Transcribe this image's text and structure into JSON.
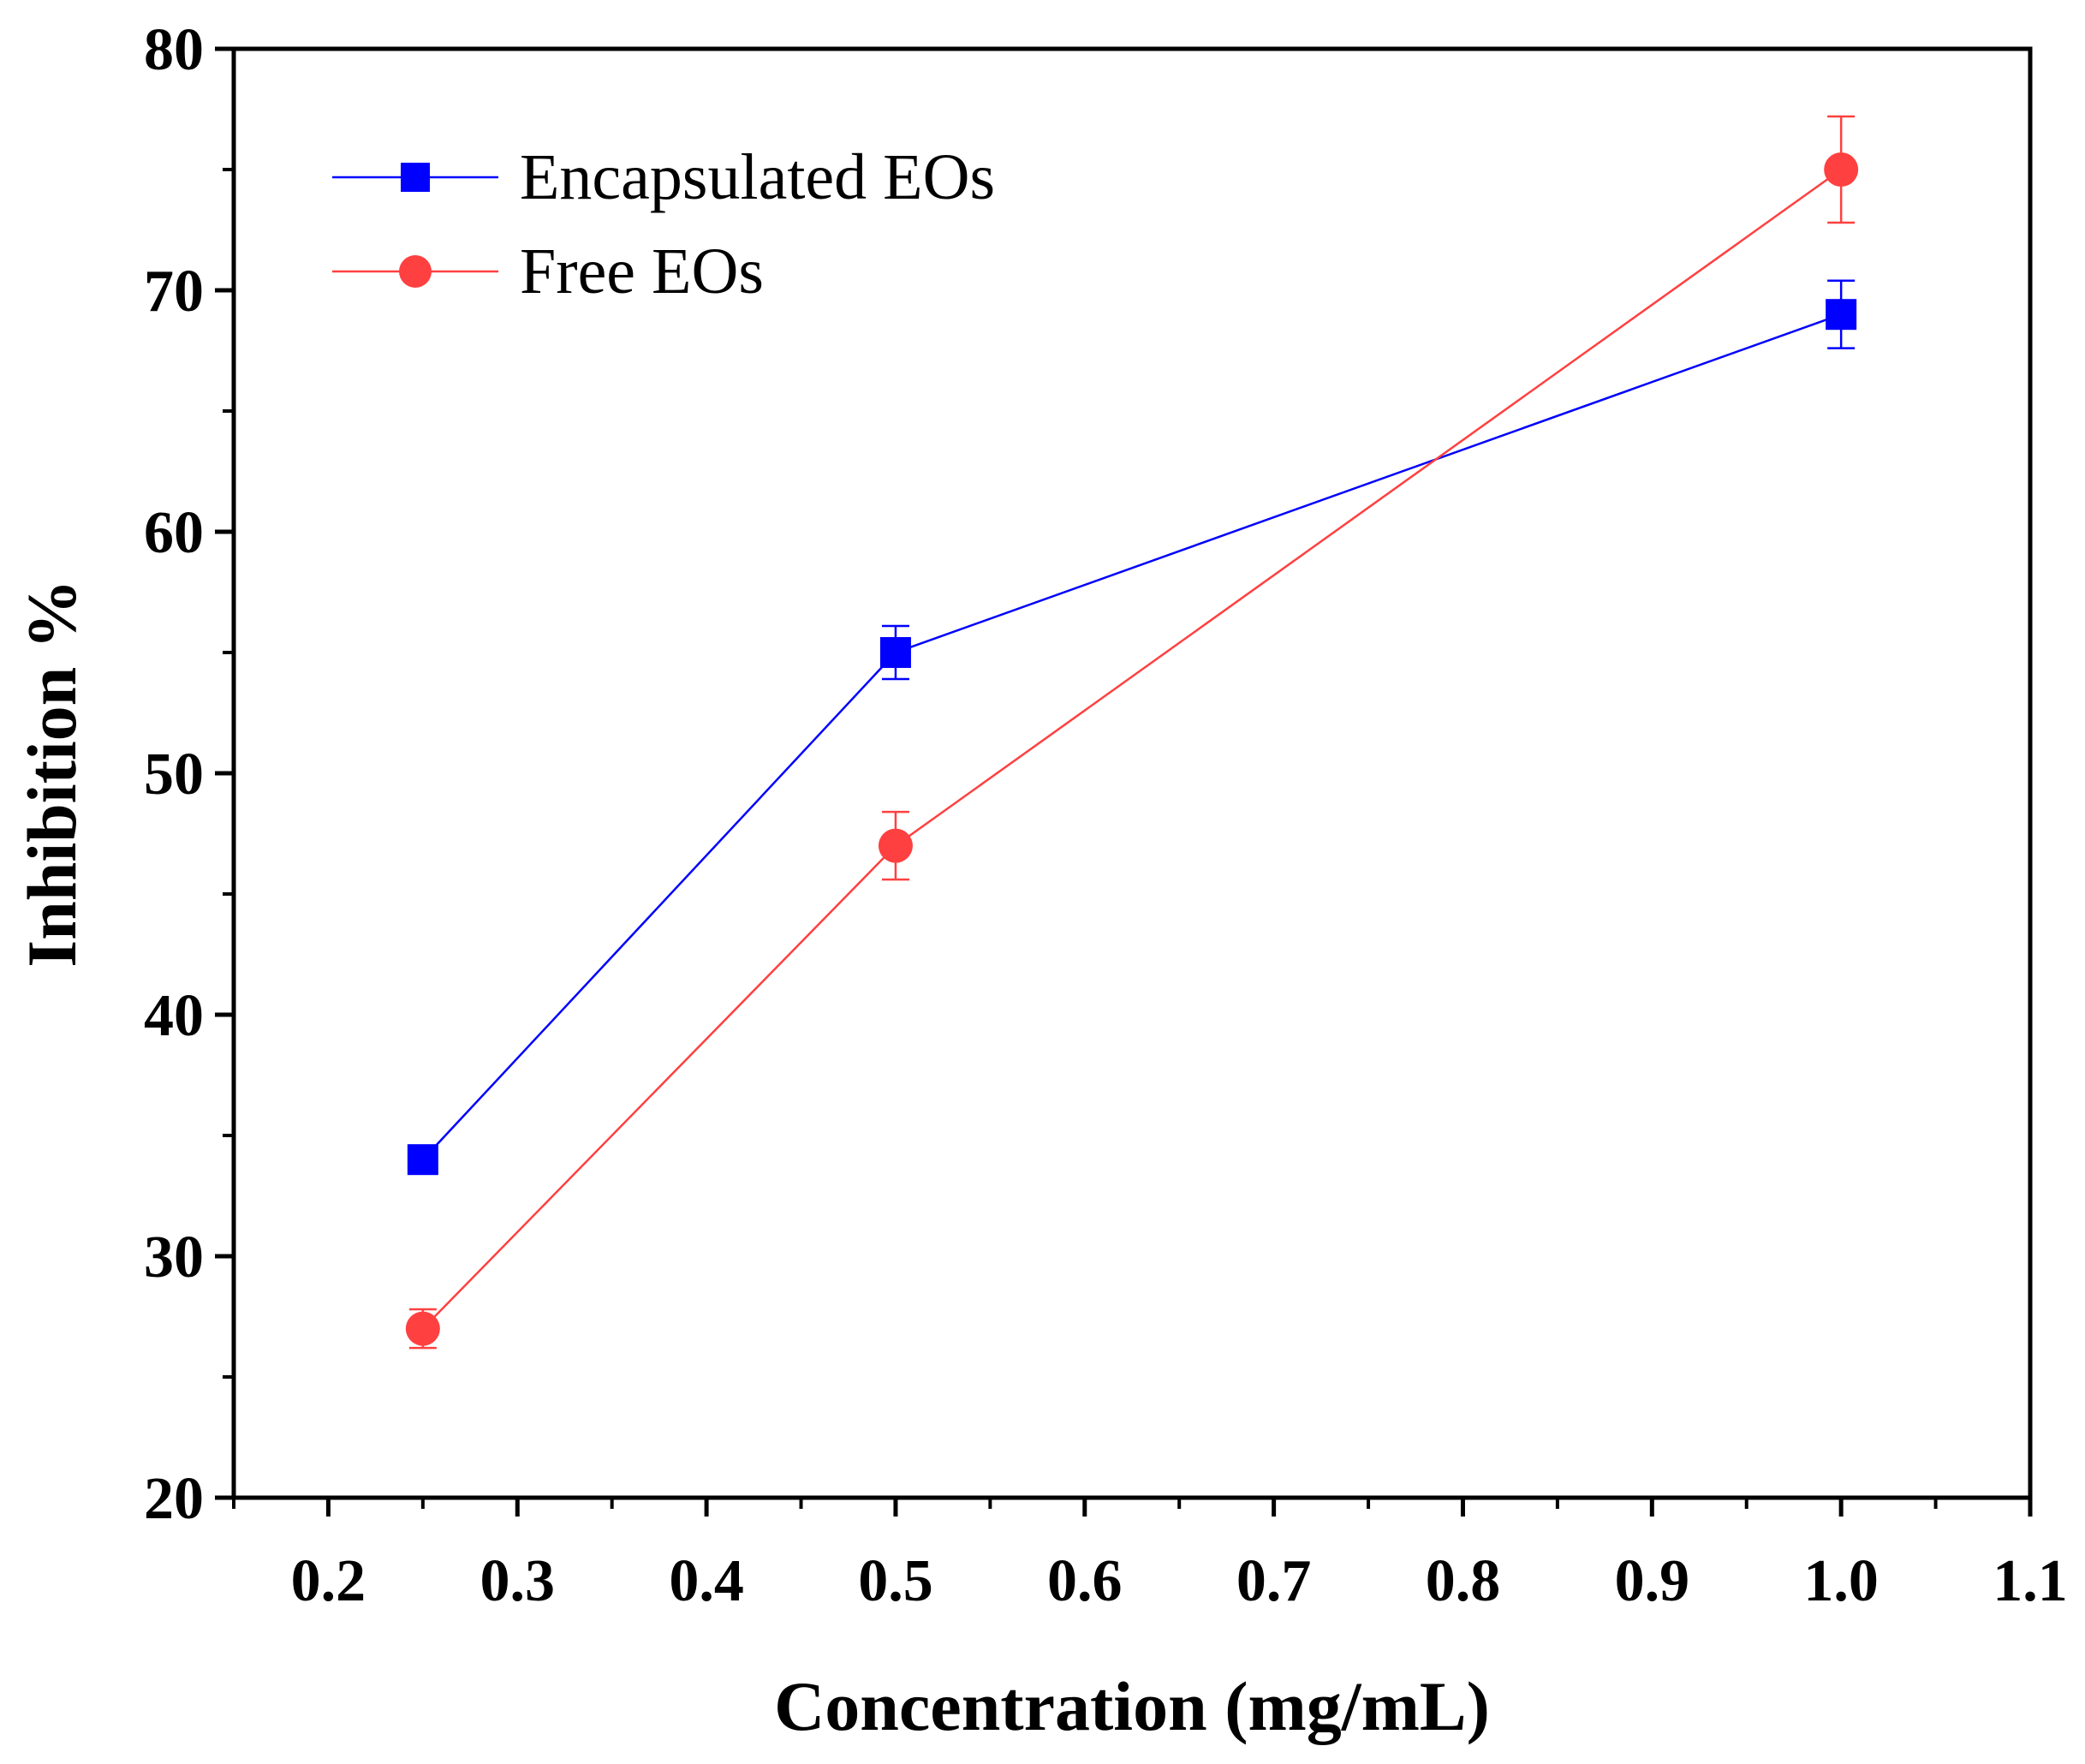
{
  "chart_data": {
    "type": "line",
    "title": "",
    "xlabel": "Concentration (mg/mL)",
    "ylabel": "Inhibition %",
    "xlim": [
      0.15,
      1.1
    ],
    "ylim": [
      20,
      80
    ],
    "xticks": [
      0.2,
      0.3,
      0.4,
      0.5,
      0.6,
      0.7,
      0.8,
      0.9,
      1.0,
      1.1
    ],
    "xtick_labels": [
      "0.2",
      "0.3",
      "0.4",
      "0.5",
      "0.6",
      "0.7",
      "0.8",
      "0.9",
      "1.0",
      "1.1"
    ],
    "yticks": [
      20,
      30,
      40,
      50,
      60,
      70,
      80
    ],
    "ytick_labels": [
      "20",
      "30",
      "40",
      "50",
      "60",
      "70",
      "80"
    ],
    "grid": false,
    "legend_position": "top-left",
    "x": [
      0.25,
      0.5,
      1.0
    ],
    "series": [
      {
        "name": "Encapsulated EOs",
        "color": "#0000ff",
        "marker": "square",
        "values": [
          34,
          55,
          69
        ],
        "errors": [
          0.2,
          1.1,
          1.4
        ]
      },
      {
        "name": "Free EOs",
        "color": "#ff4040",
        "marker": "circle",
        "values": [
          27,
          47,
          75
        ],
        "errors": [
          0.8,
          1.4,
          2.2
        ]
      }
    ]
  }
}
